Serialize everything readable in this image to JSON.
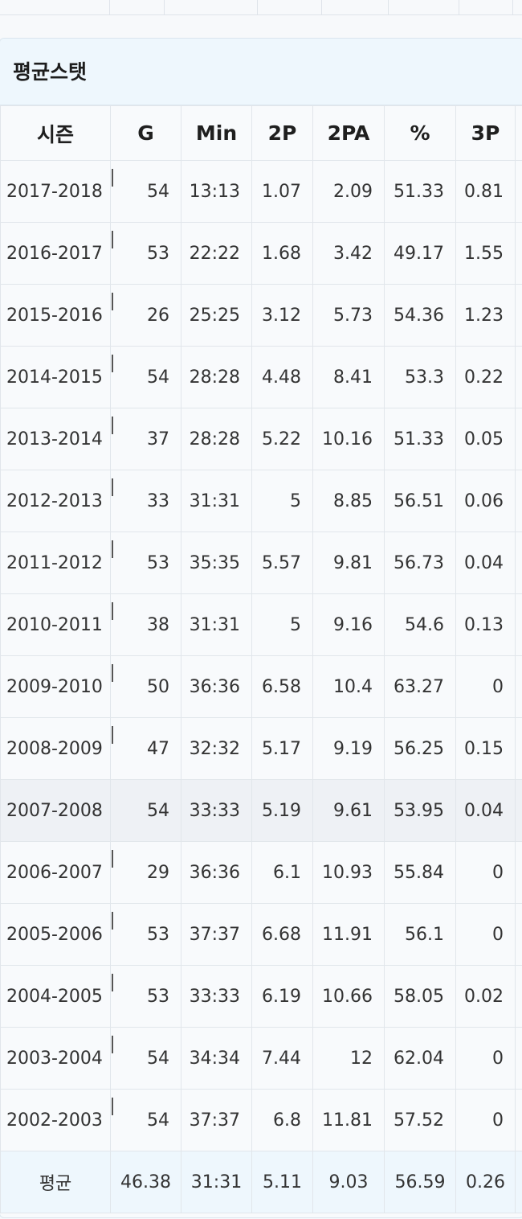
{
  "section": {
    "title": "평균스탯"
  },
  "table": {
    "headers": [
      "시즌",
      "G",
      "Min",
      "2P",
      "2PA",
      "%",
      "3P",
      ""
    ],
    "rows": [
      {
        "season": "2017-2018",
        "g": "54",
        "min": "13:13",
        "p2": "1.07",
        "pa2": "2.09",
        "pct": "51.33",
        "p3": "0.81"
      },
      {
        "season": "2016-2017",
        "g": "53",
        "min": "22:22",
        "p2": "1.68",
        "pa2": "3.42",
        "pct": "49.17",
        "p3": "1.55"
      },
      {
        "season": "2015-2016",
        "g": "26",
        "min": "25:25",
        "p2": "3.12",
        "pa2": "5.73",
        "pct": "54.36",
        "p3": "1.23"
      },
      {
        "season": "2014-2015",
        "g": "54",
        "min": "28:28",
        "p2": "4.48",
        "pa2": "8.41",
        "pct": "53.3",
        "p3": "0.22"
      },
      {
        "season": "2013-2014",
        "g": "37",
        "min": "28:28",
        "p2": "5.22",
        "pa2": "10.16",
        "pct": "51.33",
        "p3": "0.05"
      },
      {
        "season": "2012-2013",
        "g": "33",
        "min": "31:31",
        "p2": "5",
        "pa2": "8.85",
        "pct": "56.51",
        "p3": "0.06"
      },
      {
        "season": "2011-2012",
        "g": "53",
        "min": "35:35",
        "p2": "5.57",
        "pa2": "9.81",
        "pct": "56.73",
        "p3": "0.04"
      },
      {
        "season": "2010-2011",
        "g": "38",
        "min": "31:31",
        "p2": "5",
        "pa2": "9.16",
        "pct": "54.6",
        "p3": "0.13"
      },
      {
        "season": "2009-2010",
        "g": "50",
        "min": "36:36",
        "p2": "6.58",
        "pa2": "10.4",
        "pct": "63.27",
        "p3": "0"
      },
      {
        "season": "2008-2009",
        "g": "47",
        "min": "32:32",
        "p2": "5.17",
        "pa2": "9.19",
        "pct": "56.25",
        "p3": "0.15"
      },
      {
        "season": "2007-2008",
        "g": "54",
        "min": "33:33",
        "p2": "5.19",
        "pa2": "9.61",
        "pct": "53.95",
        "p3": "0.04"
      },
      {
        "season": "2006-2007",
        "g": "29",
        "min": "36:36",
        "p2": "6.1",
        "pa2": "10.93",
        "pct": "55.84",
        "p3": "0"
      },
      {
        "season": "2005-2006",
        "g": "53",
        "min": "37:37",
        "p2": "6.68",
        "pa2": "11.91",
        "pct": "56.1",
        "p3": "0"
      },
      {
        "season": "2004-2005",
        "g": "53",
        "min": "33:33",
        "p2": "6.19",
        "pa2": "10.66",
        "pct": "58.05",
        "p3": "0.02"
      },
      {
        "season": "2003-2004",
        "g": "54",
        "min": "34:34",
        "p2": "7.44",
        "pa2": "12",
        "pct": "62.04",
        "p3": "0"
      },
      {
        "season": "2002-2003",
        "g": "54",
        "min": "37:37",
        "p2": "6.8",
        "pa2": "11.81",
        "pct": "57.52",
        "p3": "0"
      }
    ],
    "average": {
      "label": "평균",
      "g": "46.38",
      "min": "31:31",
      "p2": "5.11",
      "pa2": "9.03",
      "pct": "56.59",
      "p3": "0.26"
    }
  },
  "colors": {
    "title_bg": "#eef7fd",
    "highlight_row_bg": "#eef1f5",
    "grid_line": "#e1e6eb"
  }
}
